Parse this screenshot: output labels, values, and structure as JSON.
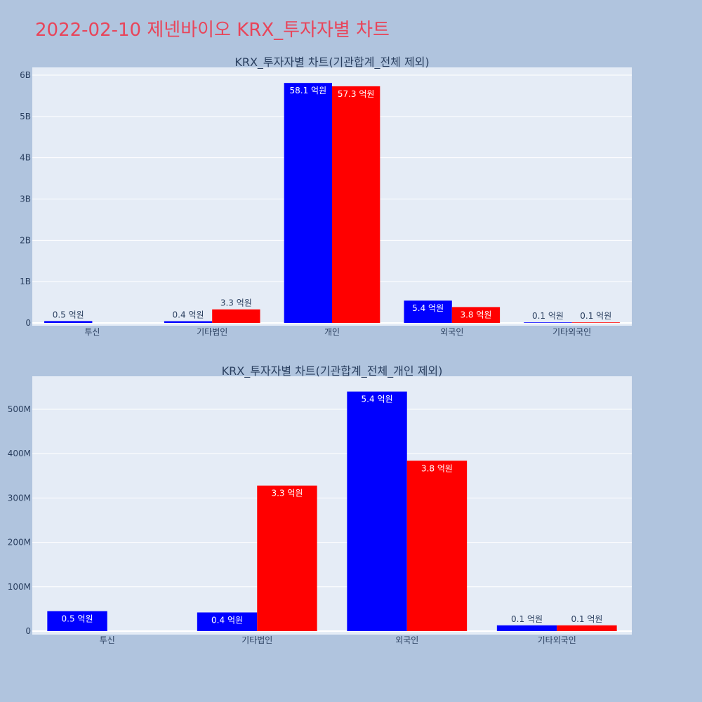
{
  "page": {
    "title": "2022-02-10 제넨바이오 KRX_투자자별 차트"
  },
  "colors": {
    "page_bg": "#b0c4de",
    "plot_bg": "#e5ecf6",
    "buy": "#0000ff",
    "sell": "#ff0000",
    "text": "#2a3f5f",
    "title": "#e8455a"
  },
  "chart_data": [
    {
      "type": "bar",
      "title": "KRX_투자자별 차트(기관합계_전체 제외)",
      "categories": [
        "투신",
        "기타법인",
        "개인",
        "외국인",
        "기타외국인"
      ],
      "ylim": [
        0,
        6000000000
      ],
      "yticks": [
        0,
        1000000000,
        2000000000,
        3000000000,
        4000000000,
        5000000000,
        6000000000
      ],
      "ytick_labels": [
        "0",
        "1B",
        "2B",
        "3B",
        "4B",
        "5B",
        "6B"
      ],
      "series": [
        {
          "color": "#0000ff",
          "values": [
            45000000,
            42000000,
            5810000000,
            540000000,
            13000000
          ],
          "labels": [
            "0.5 억원",
            "0.4 억원",
            "58.1 억원",
            "5.4 억원",
            "0.1 억원"
          ]
        },
        {
          "color": "#ff0000",
          "values": [
            0,
            328000000,
            5730000000,
            384000000,
            13000000
          ],
          "labels": [
            "",
            "3.3 억원",
            "57.3 억원",
            "3.8 억원",
            "0.1 억원"
          ]
        }
      ],
      "grid": true
    },
    {
      "type": "bar",
      "title": "KRX_투자자별 차트(기관합계_전체_개인 제외)",
      "categories": [
        "투신",
        "기타법인",
        "외국인",
        "기타외국인"
      ],
      "ylim": [
        0,
        500000000
      ],
      "yticks": [
        0,
        100000000,
        200000000,
        300000000,
        400000000,
        500000000
      ],
      "ytick_labels": [
        "0",
        "100M",
        "200M",
        "300M",
        "400M",
        "500M"
      ],
      "series": [
        {
          "color": "#0000ff",
          "values": [
            45000000,
            42000000,
            540000000,
            13000000
          ],
          "labels": [
            "0.5 억원",
            "0.4 억원",
            "5.4 억원",
            "0.1 억원"
          ]
        },
        {
          "color": "#ff0000",
          "values": [
            0,
            328000000,
            384000000,
            13000000
          ],
          "labels": [
            "",
            "3.3 억원",
            "3.8 억원",
            "0.1 억원"
          ]
        }
      ],
      "grid": true
    }
  ]
}
